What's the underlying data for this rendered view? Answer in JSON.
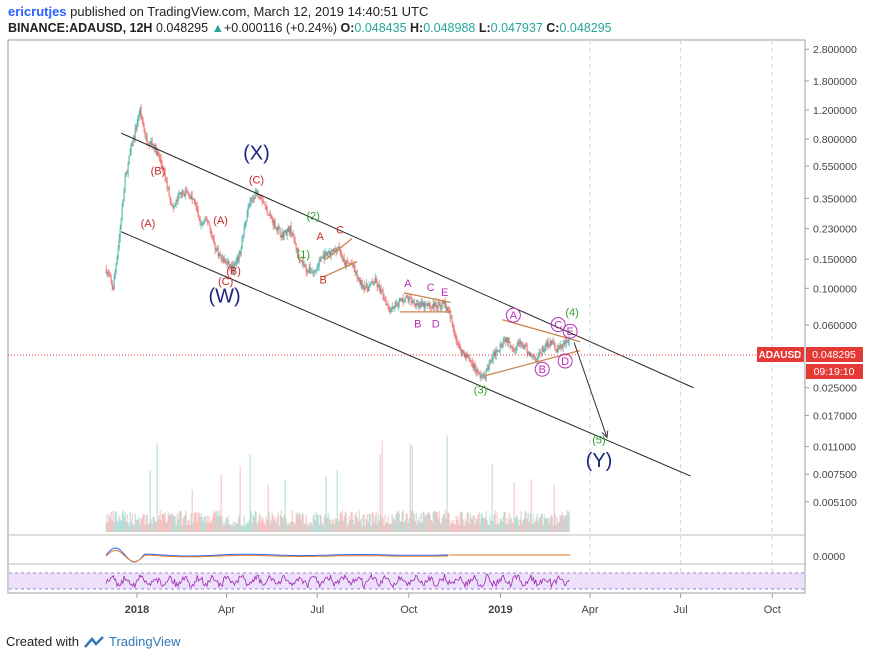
{
  "header": {
    "user": "ericrutjes",
    "published_text": "published on TradingView.com, March 12, 2019 14:40:51 UTC",
    "symbol": "BINANCE:ADAUSD, 12H",
    "last": "0.048295",
    "change": "+0.000116 (+0.24%)",
    "o_label": "O:",
    "o_value": "0.048435",
    "h_label": "H:",
    "h_value": "0.048988",
    "l_label": "L:",
    "l_value": "0.047937",
    "c_label": "C:",
    "c_value": "0.048295"
  },
  "price_badge": {
    "label": "ADAUSD",
    "value": "0.048295",
    "countdown": "09:19:10"
  },
  "footer": {
    "created_with": "Created with",
    "brand": "TradingView"
  },
  "colors": {
    "up": "#26a69a",
    "down": "#ef5350",
    "wave_main": "#1a237e",
    "wave_red": "#c62828",
    "wave_green": "#2e9e2e",
    "wave_magenta": "#b82fb8",
    "trend": "#222222",
    "triangle": "#c8864a",
    "badge": "#e53935"
  },
  "chart_data": {
    "type": "candlestick",
    "scale": "log",
    "y_ticks": [
      "2.800000",
      "1.800000",
      "1.200000",
      "0.800000",
      "0.550000",
      "0.350000",
      "0.230000",
      "0.150000",
      "0.100000",
      "0.060000",
      "0.025000",
      "0.017000",
      "0.011000",
      "0.007500",
      "0.005100"
    ],
    "x_ticks": [
      "2018",
      "Apr",
      "Jul",
      "Oct",
      "2019",
      "Apr",
      "Jul",
      "Oct"
    ],
    "price_path": [
      [
        "2017-12-01",
        0.13
      ],
      [
        "2017-12-08",
        0.1
      ],
      [
        "2017-12-14",
        0.2
      ],
      [
        "2017-12-20",
        0.45
      ],
      [
        "2017-12-26",
        0.7
      ],
      [
        "2018-01-04",
        1.2
      ],
      [
        "2018-01-10",
        0.8
      ],
      [
        "2018-01-17",
        0.75
      ],
      [
        "2018-01-24",
        0.6
      ],
      [
        "2018-02-01",
        0.4
      ],
      [
        "2018-02-06",
        0.3
      ],
      [
        "2018-02-13",
        0.37
      ],
      [
        "2018-02-20",
        0.38
      ],
      [
        "2018-02-28",
        0.33
      ],
      [
        "2018-03-06",
        0.24
      ],
      [
        "2018-03-13",
        0.26
      ],
      [
        "2018-03-20",
        0.18
      ],
      [
        "2018-03-27",
        0.15
      ],
      [
        "2018-04-02",
        0.14
      ],
      [
        "2018-04-08",
        0.13
      ],
      [
        "2018-04-14",
        0.16
      ],
      [
        "2018-04-22",
        0.3
      ],
      [
        "2018-04-30",
        0.38
      ],
      [
        "2018-05-05",
        0.37
      ],
      [
        "2018-05-12",
        0.29
      ],
      [
        "2018-05-20",
        0.24
      ],
      [
        "2018-05-27",
        0.21
      ],
      [
        "2018-06-04",
        0.23
      ],
      [
        "2018-06-12",
        0.16
      ],
      [
        "2018-06-20",
        0.13
      ],
      [
        "2018-06-28",
        0.125
      ],
      [
        "2018-07-06",
        0.155
      ],
      [
        "2018-07-14",
        0.16
      ],
      [
        "2018-07-22",
        0.18
      ],
      [
        "2018-07-28",
        0.14
      ],
      [
        "2018-08-05",
        0.14
      ],
      [
        "2018-08-12",
        0.11
      ],
      [
        "2018-08-20",
        0.1
      ],
      [
        "2018-08-28",
        0.11
      ],
      [
        "2018-09-05",
        0.09
      ],
      [
        "2018-09-12",
        0.075
      ],
      [
        "2018-09-20",
        0.082
      ],
      [
        "2018-09-28",
        0.087
      ],
      [
        "2018-10-06",
        0.083
      ],
      [
        "2018-10-14",
        0.078
      ],
      [
        "2018-10-22",
        0.078
      ],
      [
        "2018-10-30",
        0.079
      ],
      [
        "2018-11-06",
        0.081
      ],
      [
        "2018-11-14",
        0.06
      ],
      [
        "2018-11-20",
        0.044
      ],
      [
        "2018-11-26",
        0.04
      ],
      [
        "2018-12-04",
        0.035
      ],
      [
        "2018-12-10",
        0.03
      ],
      [
        "2018-12-16",
        0.029
      ],
      [
        "2018-12-22",
        0.036
      ],
      [
        "2018-12-28",
        0.042
      ],
      [
        "2019-01-06",
        0.05
      ],
      [
        "2019-01-14",
        0.044
      ],
      [
        "2019-01-22",
        0.046
      ],
      [
        "2019-01-30",
        0.04
      ],
      [
        "2019-02-06",
        0.038
      ],
      [
        "2019-02-12",
        0.042
      ],
      [
        "2019-02-20",
        0.048
      ],
      [
        "2019-02-27",
        0.042
      ],
      [
        "2019-03-06",
        0.046
      ],
      [
        "2019-03-12",
        0.048295
      ]
    ],
    "wave_labels": [
      {
        "text": "(X)",
        "date": "2018-05-01",
        "price": 0.6,
        "color": "wave_main",
        "size": "large"
      },
      {
        "text": "(W)",
        "date": "2018-03-30",
        "price": 0.082,
        "color": "wave_main",
        "size": "large"
      },
      {
        "text": "(Y)",
        "date": "2019-04-10",
        "price": 0.0083,
        "color": "wave_main",
        "size": "large"
      },
      {
        "text": "(C)",
        "date": "2018-05-01",
        "price": 0.43,
        "color": "wave_red"
      },
      {
        "text": "(B)",
        "date": "2018-01-22",
        "price": 0.49,
        "color": "wave_red"
      },
      {
        "text": "(A)",
        "date": "2018-01-12",
        "price": 0.235,
        "color": "wave_red"
      },
      {
        "text": "(A)",
        "date": "2018-03-26",
        "price": 0.245,
        "color": "wave_red"
      },
      {
        "text": "(B)",
        "date": "2018-04-08",
        "price": 0.121,
        "color": "wave_red"
      },
      {
        "text": "(C)",
        "date": "2018-03-31",
        "price": 0.105,
        "color": "wave_red"
      },
      {
        "text": "A",
        "date": "2018-07-04",
        "price": 0.196,
        "color": "wave_red"
      },
      {
        "text": "C",
        "date": "2018-07-24",
        "price": 0.215,
        "color": "wave_red"
      },
      {
        "text": "B",
        "date": "2018-07-07",
        "price": 0.107,
        "color": "wave_red"
      },
      {
        "text": "(2)",
        "date": "2018-06-27",
        "price": 0.26,
        "color": "wave_green"
      },
      {
        "text": "(1)",
        "date": "2018-06-17",
        "price": 0.153,
        "color": "wave_green"
      },
      {
        "text": "A",
        "date": "2018-09-30",
        "price": 0.102,
        "color": "wave_magenta"
      },
      {
        "text": "C",
        "date": "2018-10-23",
        "price": 0.096,
        "color": "wave_magenta"
      },
      {
        "text": "E",
        "date": "2018-11-06",
        "price": 0.09,
        "color": "wave_magenta"
      },
      {
        "text": "B",
        "date": "2018-10-10",
        "price": 0.058,
        "color": "wave_magenta"
      },
      {
        "text": "D",
        "date": "2018-10-28",
        "price": 0.058,
        "color": "wave_magenta"
      },
      {
        "text": "(3)",
        "date": "2018-12-12",
        "price": 0.023,
        "color": "wave_green"
      },
      {
        "text": "A",
        "date": "2019-01-14",
        "price": 0.065,
        "color": "wave_magenta",
        "circle": true
      },
      {
        "text": "C",
        "date": "2019-02-28",
        "price": 0.057,
        "color": "wave_magenta",
        "circle": true
      },
      {
        "text": "E",
        "date": "2019-03-12",
        "price": 0.052,
        "color": "wave_magenta",
        "circle": true
      },
      {
        "text": "B",
        "date": "2019-02-12",
        "price": 0.0306,
        "color": "wave_magenta",
        "circle": true
      },
      {
        "text": "D",
        "date": "2019-03-07",
        "price": 0.0343,
        "color": "wave_magenta",
        "circle": true
      },
      {
        "text": "(4)",
        "date": "2019-03-14",
        "price": 0.068,
        "color": "wave_green"
      },
      {
        "text": "(5)",
        "date": "2019-04-10",
        "price": 0.0115,
        "color": "wave_green"
      }
    ],
    "channel_lines": [
      {
        "from": [
          "2017-12-16",
          0.87
        ],
        "to": [
          "2019-07-14",
          0.025
        ]
      },
      {
        "from": [
          "2017-12-16",
          0.22
        ],
        "to": [
          "2019-07-11",
          0.0073
        ]
      }
    ],
    "triangles": [
      {
        "upper": [
          [
            "2018-07-10",
            0.15
          ],
          [
            "2018-08-05",
            0.2
          ]
        ],
        "lower": [
          [
            "2018-07-07",
            0.117
          ],
          [
            "2018-08-10",
            0.145
          ]
        ]
      },
      {
        "upper": [
          [
            "2018-09-26",
            0.094
          ],
          [
            "2018-11-12",
            0.082
          ]
        ],
        "lower": [
          [
            "2018-09-22",
            0.072
          ],
          [
            "2018-11-13",
            0.072
          ]
        ]
      },
      {
        "upper": [
          [
            "2019-01-03",
            0.0645
          ],
          [
            "2019-03-22",
            0.0475
          ]
        ],
        "lower": [
          [
            "2018-12-16",
            0.0295
          ],
          [
            "2019-03-22",
            0.042
          ]
        ]
      }
    ],
    "projection": {
      "from": [
        "2019-03-16",
        0.047
      ],
      "to": [
        "2019-04-18",
        0.0125
      ]
    }
  }
}
